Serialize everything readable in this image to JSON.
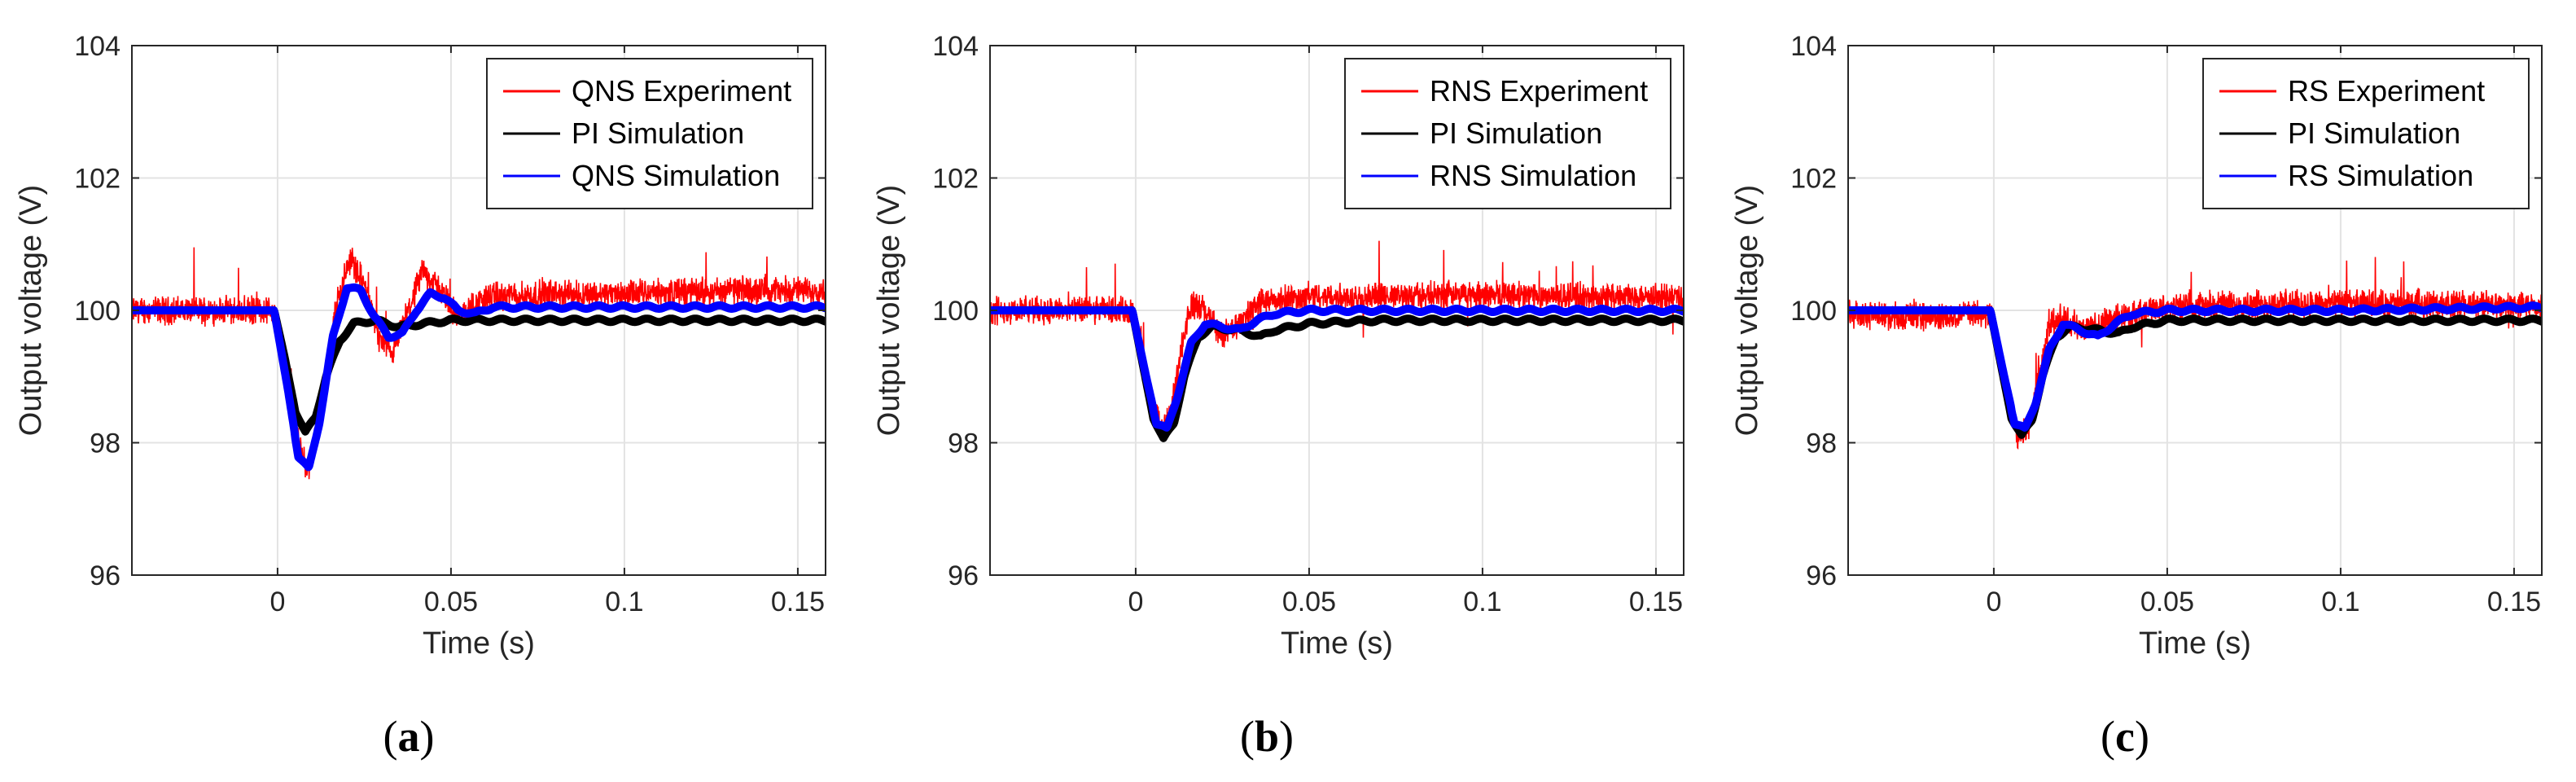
{
  "figure": {
    "background": "#ffffff"
  },
  "chart_data": [
    {
      "type": "line",
      "panel_label": "(a)",
      "panel_letter": "a",
      "title": "",
      "xlabel": "Time (s)",
      "ylabel": "Output voltage (V)",
      "xlim": [
        -0.042,
        0.158
      ],
      "ylim": [
        96,
        104
      ],
      "xticks": [
        0,
        0.05,
        0.1,
        0.15
      ],
      "xtick_labels": [
        "0",
        "0.05",
        "0.1",
        "0.15"
      ],
      "yticks": [
        96,
        98,
        100,
        102,
        104
      ],
      "ytick_labels": [
        "96",
        "98",
        "100",
        "102",
        "104"
      ],
      "grid": true,
      "legend_position": "top-right",
      "series": [
        {
          "name": "QNS Experiment",
          "color": "#ff0000",
          "style": "noisy",
          "x": [
            -0.042,
            -0.02,
            -0.001,
            0.003,
            0.007,
            0.009,
            0.013,
            0.017,
            0.021,
            0.025,
            0.029,
            0.033,
            0.037,
            0.042,
            0.047,
            0.052,
            0.06,
            0.08,
            0.1,
            0.13,
            0.158
          ],
          "y": [
            100.0,
            100.0,
            100.0,
            98.8,
            97.8,
            97.6,
            98.6,
            100.1,
            100.8,
            100.4,
            99.6,
            99.3,
            99.9,
            100.6,
            100.3,
            99.9,
            100.2,
            100.25,
            100.25,
            100.3,
            100.3
          ]
        },
        {
          "name": "PI Simulation",
          "color": "#000000",
          "style": "thick",
          "x": [
            -0.042,
            -0.001,
            0.002,
            0.005,
            0.008,
            0.011,
            0.014,
            0.018,
            0.022,
            0.028,
            0.035,
            0.042,
            0.05,
            0.06,
            0.08,
            0.158
          ],
          "y": [
            100.0,
            100.0,
            99.3,
            98.5,
            98.15,
            98.4,
            99.0,
            99.55,
            99.8,
            99.85,
            99.75,
            99.8,
            99.85,
            99.85,
            99.85,
            99.85
          ]
        },
        {
          "name": "QNS Simulation",
          "color": "#0000ff",
          "style": "thick",
          "x": [
            -0.042,
            -0.001,
            0.003,
            0.006,
            0.009,
            0.012,
            0.016,
            0.02,
            0.024,
            0.028,
            0.032,
            0.036,
            0.04,
            0.044,
            0.048,
            0.052,
            0.057,
            0.062,
            0.07,
            0.09,
            0.12,
            0.158
          ],
          "y": [
            100.0,
            100.0,
            98.8,
            97.8,
            97.6,
            98.3,
            99.6,
            100.35,
            100.3,
            99.9,
            99.6,
            99.65,
            100.0,
            100.25,
            100.2,
            100.0,
            99.95,
            100.05,
            100.05,
            100.05,
            100.05,
            100.05
          ]
        }
      ]
    },
    {
      "type": "line",
      "panel_label": "(b)",
      "panel_letter": "b",
      "title": "",
      "xlabel": "Time (s)",
      "ylabel": "Output voltage (V)",
      "xlim": [
        -0.042,
        0.158
      ],
      "ylim": [
        96,
        104
      ],
      "xticks": [
        0,
        0.05,
        0.1,
        0.15
      ],
      "xtick_labels": [
        "0",
        "0.05",
        "0.1",
        "0.15"
      ],
      "yticks": [
        96,
        98,
        100,
        102,
        104
      ],
      "ytick_labels": [
        "96",
        "98",
        "100",
        "102",
        "104"
      ],
      "grid": true,
      "legend_position": "top-right",
      "series": [
        {
          "name": "RNS Experiment",
          "color": "#ff0000",
          "style": "noisy",
          "x": [
            -0.042,
            -0.02,
            -0.001,
            0.003,
            0.007,
            0.01,
            0.013,
            0.016,
            0.02,
            0.025,
            0.03,
            0.035,
            0.04,
            0.05,
            0.07,
            0.1,
            0.13,
            0.158
          ],
          "y": [
            100.0,
            100.0,
            100.0,
            99.0,
            98.2,
            98.4,
            99.4,
            100.1,
            100.0,
            99.6,
            99.8,
            100.1,
            100.15,
            100.2,
            100.2,
            100.25,
            100.2,
            100.2
          ]
        },
        {
          "name": "PI Simulation",
          "color": "#000000",
          "style": "thick",
          "x": [
            -0.042,
            -0.001,
            0.002,
            0.005,
            0.008,
            0.011,
            0.014,
            0.018,
            0.022,
            0.03,
            0.036,
            0.04,
            0.05,
            0.07,
            0.158
          ],
          "y": [
            100.0,
            100.0,
            99.2,
            98.4,
            98.05,
            98.3,
            99.0,
            99.6,
            99.75,
            99.7,
            99.6,
            99.7,
            99.8,
            99.85,
            99.85
          ]
        },
        {
          "name": "RNS Simulation",
          "color": "#0000ff",
          "style": "thick",
          "x": [
            -0.042,
            -0.001,
            0.003,
            0.006,
            0.009,
            0.012,
            0.016,
            0.02,
            0.025,
            0.03,
            0.035,
            0.04,
            0.05,
            0.07,
            0.1,
            0.158
          ],
          "y": [
            100.0,
            100.0,
            99.0,
            98.3,
            98.2,
            98.7,
            99.5,
            99.8,
            99.75,
            99.7,
            99.85,
            99.95,
            100.0,
            100.0,
            100.0,
            100.0
          ]
        }
      ]
    },
    {
      "type": "line",
      "panel_label": "(c)",
      "panel_letter": "c",
      "title": "",
      "xlabel": "Time (s)",
      "ylabel": "Output voltage (V)",
      "xlim": [
        -0.042,
        0.158
      ],
      "ylim": [
        96,
        104
      ],
      "xticks": [
        0,
        0.05,
        0.1,
        0.15
      ],
      "xtick_labels": [
        "0",
        "0.05",
        "0.1",
        "0.15"
      ],
      "yticks": [
        96,
        98,
        100,
        102,
        104
      ],
      "ytick_labels": [
        "96",
        "98",
        "100",
        "102",
        "104"
      ],
      "grid": true,
      "legend_position": "top-right",
      "series": [
        {
          "name": "RS Experiment",
          "color": "#ff0000",
          "style": "noisy",
          "x": [
            -0.042,
            -0.02,
            -0.001,
            0.003,
            0.007,
            0.01,
            0.013,
            0.016,
            0.02,
            0.025,
            0.03,
            0.04,
            0.05,
            0.07,
            0.1,
            0.13,
            0.158
          ],
          "y": [
            99.95,
            99.9,
            99.95,
            99.0,
            98.1,
            98.2,
            99.0,
            99.8,
            99.9,
            99.7,
            99.8,
            99.95,
            100.05,
            100.1,
            100.1,
            100.1,
            100.05
          ]
        },
        {
          "name": "PI Simulation",
          "color": "#000000",
          "style": "thick",
          "x": [
            -0.042,
            -0.001,
            0.002,
            0.005,
            0.008,
            0.011,
            0.014,
            0.018,
            0.022,
            0.03,
            0.036,
            0.04,
            0.05,
            0.07,
            0.158
          ],
          "y": [
            100.0,
            100.0,
            99.2,
            98.4,
            98.1,
            98.35,
            99.0,
            99.6,
            99.75,
            99.7,
            99.65,
            99.75,
            99.85,
            99.85,
            99.85
          ]
        },
        {
          "name": "RS Simulation",
          "color": "#0000ff",
          "style": "thick",
          "x": [
            -0.042,
            -0.001,
            0.003,
            0.006,
            0.009,
            0.012,
            0.016,
            0.02,
            0.025,
            0.03,
            0.035,
            0.04,
            0.05,
            0.07,
            0.1,
            0.158
          ],
          "y": [
            100.0,
            100.0,
            99.0,
            98.3,
            98.2,
            98.6,
            99.4,
            99.8,
            99.7,
            99.6,
            99.8,
            99.95,
            100.0,
            100.0,
            100.0,
            100.05
          ]
        }
      ]
    }
  ]
}
